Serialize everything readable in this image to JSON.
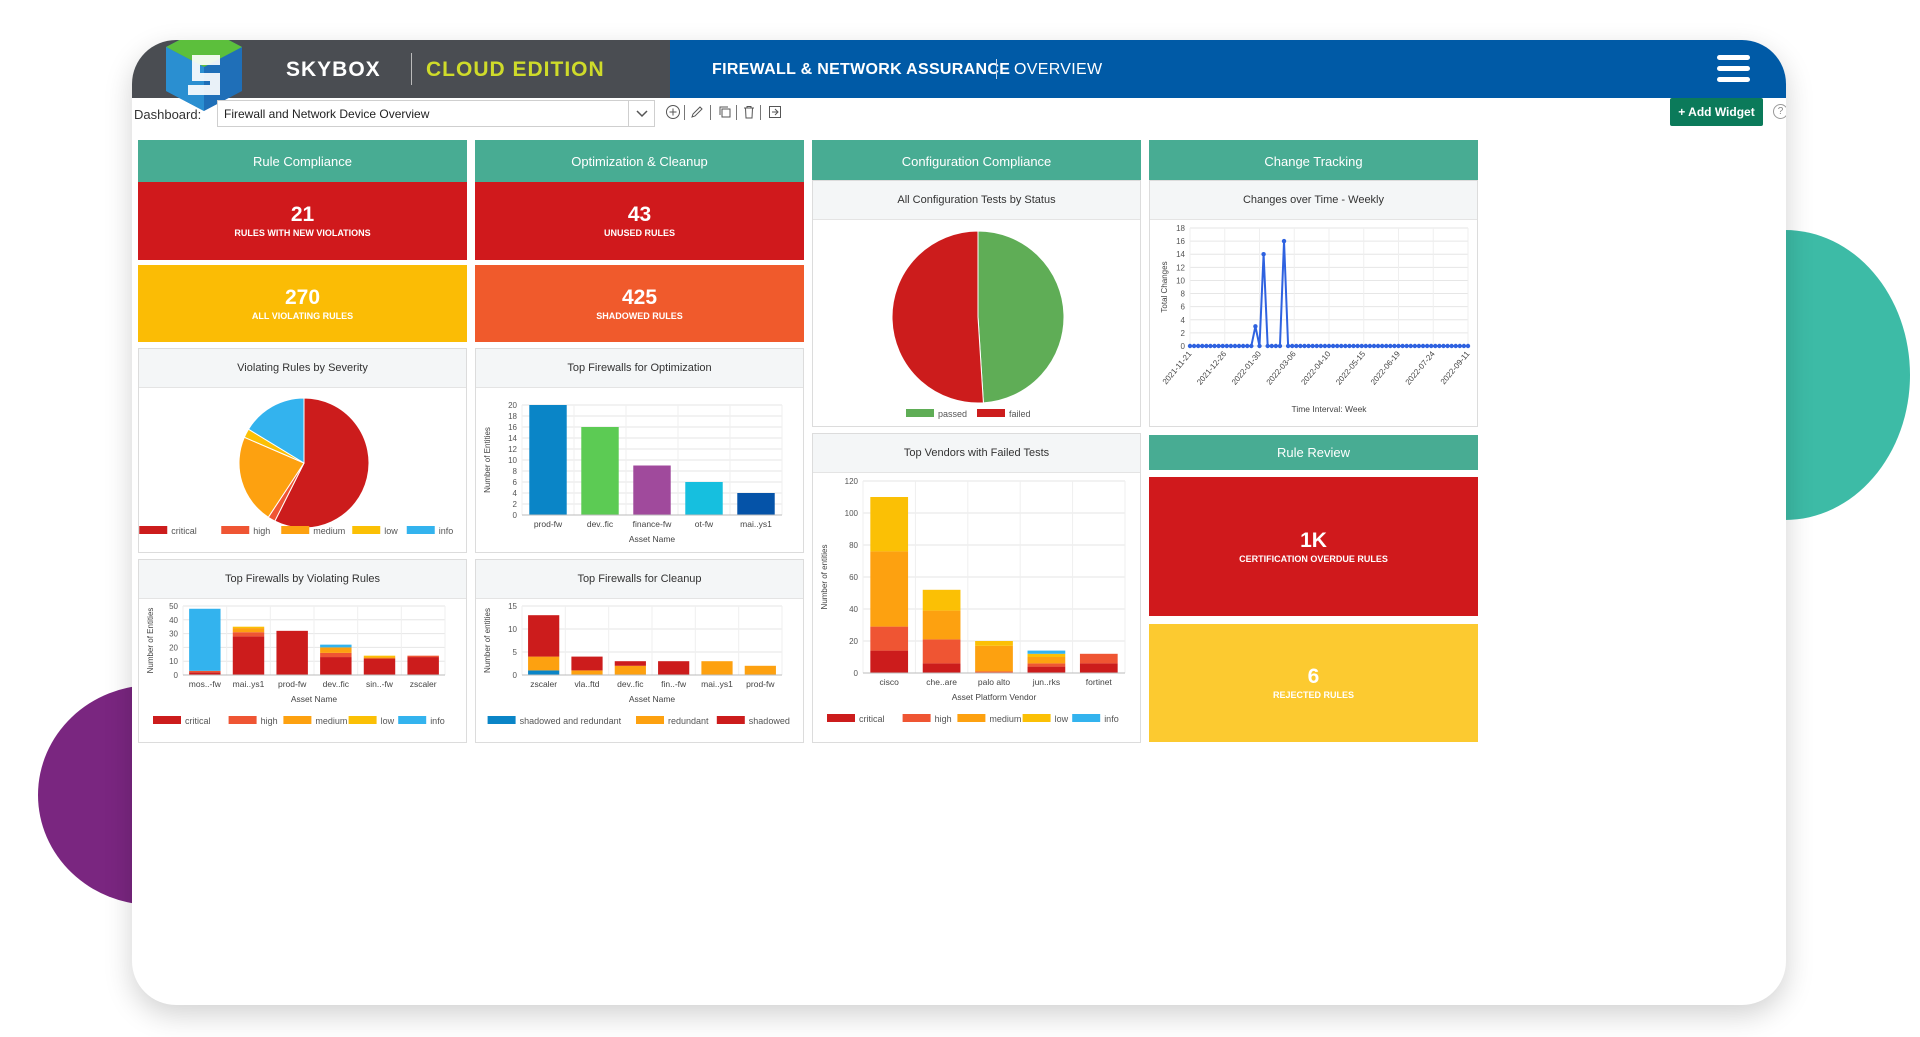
{
  "brand": {
    "name": "SKYBOX",
    "edition": "CLOUD EDITION"
  },
  "nav": {
    "title": "FIREWALL & NETWORK ASSURANCE",
    "section": "OVERVIEW"
  },
  "toolbar": {
    "dashboard_label": "Dashboard:",
    "dashboard_value": "Firewall and Network Device Overview",
    "add_widget": "+ Add Widget",
    "help": "?"
  },
  "columns": [
    "Rule Compliance",
    "Optimization & Cleanup",
    "Configuration Compliance",
    "Change Tracking"
  ],
  "rule_review_header": "Rule Review",
  "colors": {
    "teal": "#48ac93",
    "red": "#d0191c",
    "orange": "#f05a28",
    "amber": "#fbb800",
    "yellow": "#fbca2f",
    "critical": "#cc1c1c",
    "high": "#ef5533",
    "medium": "#fda110",
    "low": "#fbc005",
    "info": "#33b3ee",
    "passed": "#5fad56",
    "failed": "#cc1c1c",
    "green_btn": "#0b7a5a"
  },
  "kpis": {
    "new_violations": {
      "value": "21",
      "label": "RULES WITH NEW VIOLATIONS",
      "color": "#d0191c"
    },
    "unused": {
      "value": "43",
      "label": "UNUSED RULES",
      "color": "#d0191c"
    },
    "all_violating": {
      "value": "270",
      "label": "ALL VIOLATING RULES",
      "color": "#fbbc05"
    },
    "shadowed": {
      "value": "425",
      "label": "SHADOWED RULES",
      "color": "#f05a2c"
    },
    "cert_overdue": {
      "value": "1K",
      "label": "CERTIFICATION OVERDUE RULES",
      "color": "#d0191c"
    },
    "rejected": {
      "value": "6",
      "label": "REJECTED RULES",
      "color": "#fcca30"
    }
  },
  "chart_data": [
    {
      "id": "severity_pie",
      "type": "pie",
      "title": "Violating Rules by Severity",
      "legend": [
        "critical",
        "high",
        "medium",
        "low",
        "info"
      ],
      "values": [
        155,
        5,
        60,
        6,
        44
      ],
      "colors": [
        "#cc1c1c",
        "#ef5533",
        "#fda110",
        "#fbc005",
        "#33b3ee"
      ]
    },
    {
      "id": "config_pie",
      "type": "pie",
      "title": "All Configuration Tests by Status",
      "legend": [
        "passed",
        "failed"
      ],
      "values": [
        49,
        51
      ],
      "colors": [
        "#5fad56",
        "#cc1c1c"
      ]
    },
    {
      "id": "top_opt",
      "type": "bar",
      "title": "Top Firewalls for Optimization",
      "categories": [
        "prod-fw",
        "dev..fic",
        "finance-fw",
        "ot-fw",
        "mai..ys1"
      ],
      "values": [
        20,
        16,
        9,
        6,
        4
      ],
      "colors": [
        "#0a85c7",
        "#5ccb54",
        "#a04a9c",
        "#16bfdf",
        "#0553a8"
      ],
      "xlabel": "Asset Name",
      "ylabel": "Number of Entities",
      "ylim": [
        0,
        20
      ],
      "yticks": [
        0,
        2,
        4,
        6,
        8,
        10,
        12,
        14,
        16,
        18,
        20
      ]
    },
    {
      "id": "changes_line",
      "type": "line",
      "title": "Changes over Time - Weekly",
      "xlabel": "Time Interval: Week",
      "ylabel": "Total Changes",
      "ylim": [
        0,
        18
      ],
      "yticks": [
        0,
        2,
        4,
        6,
        8,
        10,
        12,
        14,
        16,
        18
      ],
      "xticks": [
        "2021-11-21",
        "2021-12-26",
        "2022-01-30",
        "2022-03-06",
        "2022-04-10",
        "2022-05-15",
        "2022-06-19",
        "2022-07-24",
        "2022-09-11"
      ],
      "values": [
        0,
        0,
        0,
        0,
        0,
        0,
        0,
        0,
        0,
        0,
        0,
        0,
        0,
        0,
        0,
        0,
        3,
        0,
        14,
        0,
        0,
        0,
        0,
        16,
        0,
        0,
        0,
        0,
        0,
        0,
        0,
        0,
        0,
        0,
        0,
        0,
        0,
        0,
        0,
        0,
        0,
        0,
        0,
        0,
        0,
        0,
        0,
        0,
        0,
        0,
        0,
        0,
        0,
        0,
        0,
        0,
        0,
        0,
        0,
        0,
        0,
        0,
        0,
        0,
        0,
        0,
        0,
        0,
        0
      ]
    },
    {
      "id": "top_violating",
      "type": "bar",
      "stacked": true,
      "title": "Top Firewalls by Violating Rules",
      "categories": [
        "mos..-fw",
        "mai..ys1",
        "prod-fw",
        "dev..fic",
        "sin..-fw",
        "zscaler"
      ],
      "series": [
        {
          "name": "critical",
          "color": "#cc1c1c",
          "values": [
            2,
            28,
            32,
            13,
            12,
            13
          ]
        },
        {
          "name": "high",
          "color": "#ef5533",
          "values": [
            1,
            3,
            0,
            3,
            0,
            1
          ]
        },
        {
          "name": "medium",
          "color": "#fda110",
          "values": [
            0,
            3,
            0,
            4,
            1,
            0
          ]
        },
        {
          "name": "low",
          "color": "#fbc005",
          "values": [
            0,
            1,
            0,
            0,
            1,
            0
          ]
        },
        {
          "name": "info",
          "color": "#33b3ee",
          "values": [
            45,
            0,
            0,
            2,
            0,
            0
          ]
        }
      ],
      "xlabel": "Asset Name",
      "ylabel": "Number of Entities",
      "ylim": [
        0,
        50
      ],
      "yticks": [
        0,
        10,
        20,
        30,
        40,
        50
      ]
    },
    {
      "id": "top_cleanup",
      "type": "bar",
      "stacked": true,
      "title": "Top Firewalls for Cleanup",
      "categories": [
        "zscaler",
        "vla..ftd",
        "dev..fic",
        "fin..-fw",
        "mai..ys1",
        "prod-fw"
      ],
      "series": [
        {
          "name": "shadowed and redundant",
          "color": "#0a85c7",
          "values": [
            1,
            0,
            0,
            0,
            0,
            0
          ]
        },
        {
          "name": "redundant",
          "color": "#fda110",
          "values": [
            3,
            1,
            2,
            0,
            3,
            2
          ]
        },
        {
          "name": "shadowed",
          "color": "#cc1c1c",
          "values": [
            9,
            3,
            1,
            3,
            0,
            0
          ]
        }
      ],
      "xlabel": "Asset Name",
      "ylabel": "Number of entities",
      "ylim": [
        0,
        15
      ],
      "yticks": [
        0,
        5,
        10,
        15
      ]
    },
    {
      "id": "vendors",
      "type": "bar",
      "stacked": true,
      "title": "Top Vendors with Failed Tests",
      "categories": [
        "cisco",
        "che..are",
        "palo alto",
        "jun..rks",
        "fortinet"
      ],
      "series": [
        {
          "name": "critical",
          "color": "#cc1c1c",
          "values": [
            14,
            6,
            0,
            4,
            6
          ]
        },
        {
          "name": "high",
          "color": "#ef5533",
          "values": [
            15,
            15,
            1,
            2,
            6
          ]
        },
        {
          "name": "medium",
          "color": "#fda110",
          "values": [
            47,
            18,
            16,
            4,
            0
          ]
        },
        {
          "name": "low",
          "color": "#fbc005",
          "values": [
            34,
            13,
            3,
            2,
            0
          ]
        },
        {
          "name": "info",
          "color": "#33b3ee",
          "values": [
            0,
            0,
            0,
            2,
            0
          ]
        }
      ],
      "xlabel": "Asset Platform Vendor",
      "ylabel": "Number of entities",
      "ylim": [
        0,
        120
      ],
      "yticks": [
        0,
        20,
        40,
        60,
        80,
        100,
        120
      ]
    }
  ]
}
